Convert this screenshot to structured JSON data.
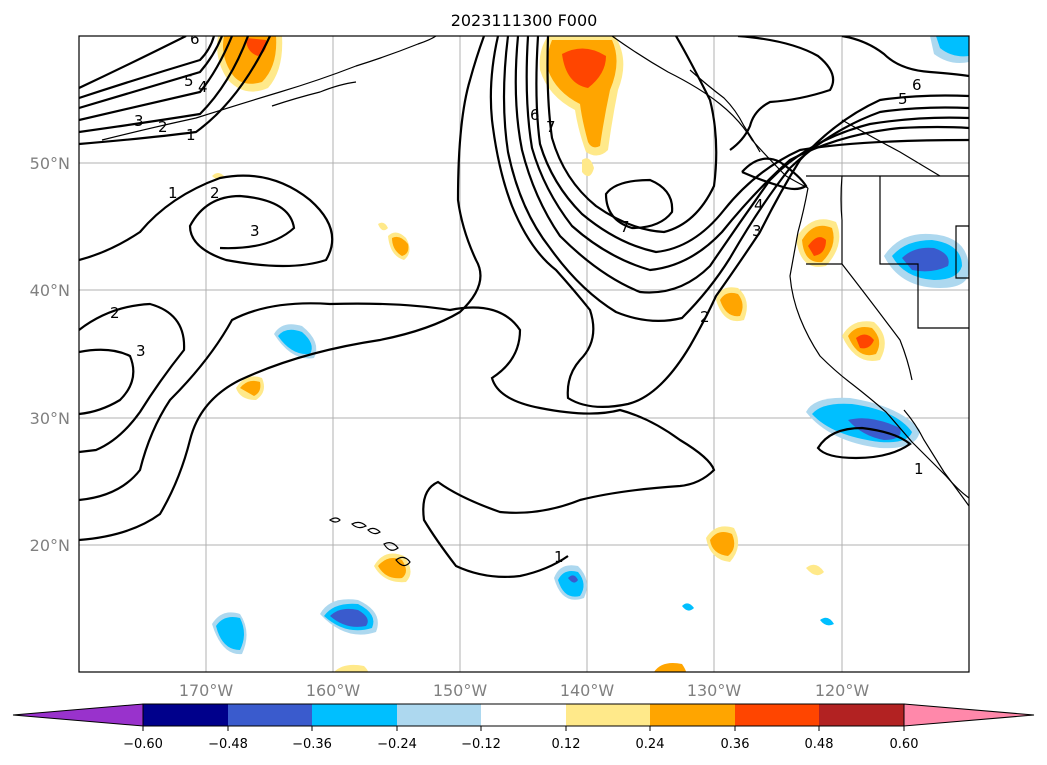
{
  "title": "2023111300 F000",
  "lat_labels": [
    "50°N",
    "40°N",
    "30°N",
    "20°N"
  ],
  "lon_labels": [
    "170°W",
    "160°W",
    "150°W",
    "140°W",
    "130°W",
    "120°W"
  ],
  "colorbar": {
    "ticks": [
      "−0.60",
      "−0.48",
      "−0.36",
      "−0.24",
      "−0.12",
      "0.12",
      "0.24",
      "0.36",
      "0.48",
      "0.60"
    ],
    "colors": [
      "#9932cc",
      "#00008b",
      "#3a5bcd",
      "#00bfff",
      "#add8ef",
      "#ffffff",
      "#ffe98a",
      "#ffa500",
      "#ff4500",
      "#b22222",
      "#ff88aa"
    ]
  },
  "contour_labels": [
    "6",
    "5",
    "4",
    "3",
    "2",
    "1",
    "1",
    "2",
    "3",
    "2",
    "3",
    "6",
    "7",
    "7",
    "6",
    "5",
    "4",
    "3",
    "2",
    "1",
    "1"
  ],
  "chart_data": {
    "type": "heatmap",
    "title": "2023111300 F000",
    "lat_range": [
      "10°N",
      "60°N"
    ],
    "lon_range": [
      "180°W",
      "110°W"
    ],
    "contour_levels": [
      1,
      2,
      3,
      4,
      5,
      6,
      7
    ],
    "shading_levels": [
      -0.6,
      -0.48,
      -0.36,
      -0.24,
      -0.12,
      0.12,
      0.24,
      0.36,
      0.48,
      0.6
    ],
    "grid": true
  }
}
